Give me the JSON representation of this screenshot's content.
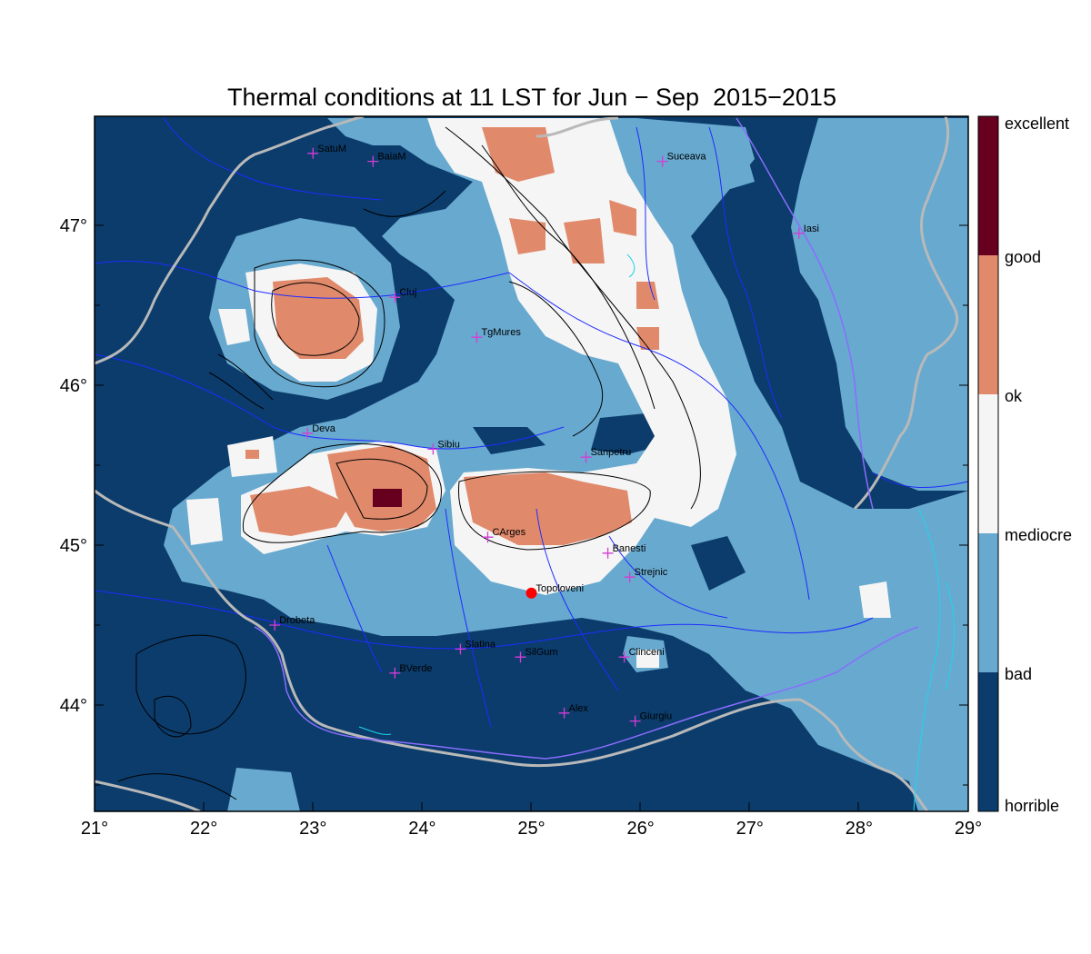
{
  "title": "Thermal conditions at 11 LST for Jun − Sep  2015−2015",
  "colorbar": {
    "labels": [
      "excellent",
      "good",
      "ok",
      "mediocre",
      "bad",
      "horrible"
    ],
    "colors": [
      "#67001f",
      "#e08a6b",
      "#f5f5f5",
      "#67a9cf",
      "#0b3c6b"
    ]
  },
  "axes": {
    "x_ticks": [
      "21°",
      "22°",
      "23°",
      "24°",
      "25°",
      "26°",
      "27°",
      "28°",
      "29°"
    ],
    "y_ticks": [
      "47°",
      "46°",
      "45°",
      "44°"
    ]
  },
  "cities": [
    {
      "name": "SatuM",
      "lon": 23.0,
      "lat": 47.45
    },
    {
      "name": "BaiaM",
      "lon": 23.55,
      "lat": 47.4
    },
    {
      "name": "Suceava",
      "lon": 26.2,
      "lat": 47.4
    },
    {
      "name": "Iasi",
      "lon": 27.45,
      "lat": 46.95
    },
    {
      "name": "Cluj",
      "lon": 23.75,
      "lat": 46.55
    },
    {
      "name": "TgMures",
      "lon": 24.5,
      "lat": 46.3
    },
    {
      "name": "Deva",
      "lon": 22.95,
      "lat": 45.7
    },
    {
      "name": "Sibiu",
      "lon": 24.1,
      "lat": 45.6
    },
    {
      "name": "Sanpetru",
      "lon": 25.5,
      "lat": 45.55
    },
    {
      "name": "CArges",
      "lon": 24.6,
      "lat": 45.05
    },
    {
      "name": "Banesti",
      "lon": 25.7,
      "lat": 44.95
    },
    {
      "name": "Strejnic",
      "lon": 25.9,
      "lat": 44.8
    },
    {
      "name": "Topoloveni",
      "lon": 25.0,
      "lat": 44.7,
      "marker": "dot"
    },
    {
      "name": "Drobeta",
      "lon": 22.65,
      "lat": 44.5
    },
    {
      "name": "Slatina",
      "lon": 24.35,
      "lat": 44.35
    },
    {
      "name": "SilGum",
      "lon": 24.9,
      "lat": 44.3
    },
    {
      "name": "Clinceni",
      "lon": 25.85,
      "lat": 44.3
    },
    {
      "name": "BVerde",
      "lon": 23.75,
      "lat": 44.2
    },
    {
      "name": "Alex",
      "lon": 25.3,
      "lat": 43.95
    },
    {
      "name": "Giurgiu",
      "lon": 25.95,
      "lat": 43.9
    }
  ]
}
